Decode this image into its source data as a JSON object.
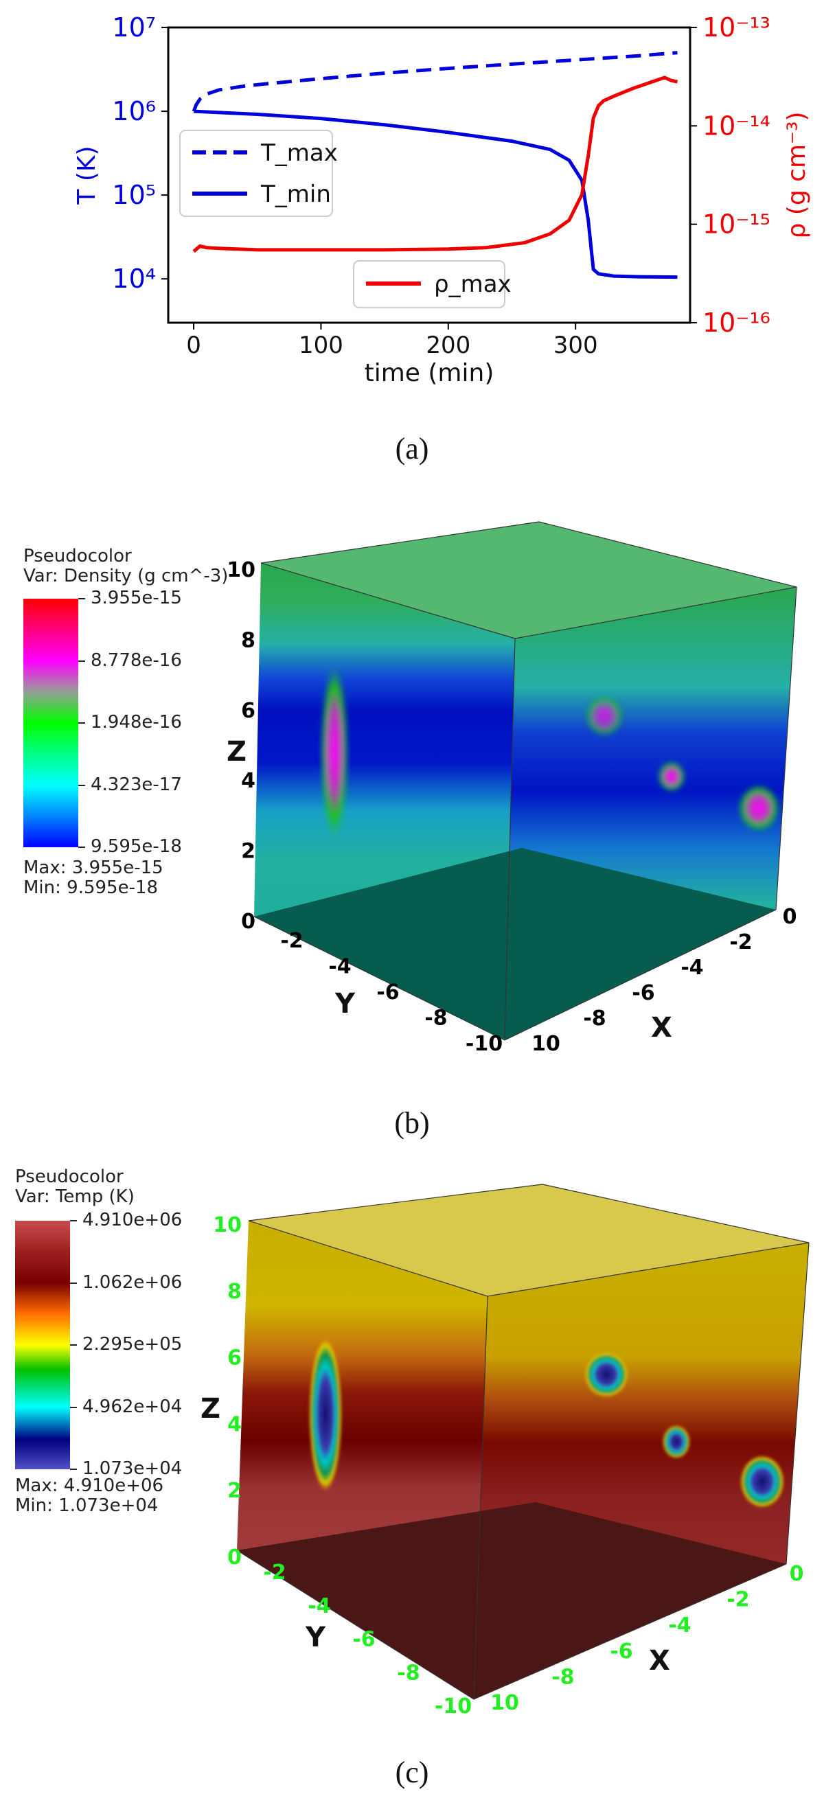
{
  "panel_a": {
    "caption": "(a)",
    "chart_data": {
      "type": "line",
      "xlabel": "time (min)",
      "ylabel_left": "T (K)",
      "ylabel_right": "ρ (g cm⁻³)",
      "x_ticks": [
        "0",
        "100",
        "200",
        "300"
      ],
      "y_left_ticks": [
        "10⁴",
        "10⁵",
        "10⁶",
        "10⁷"
      ],
      "y_right_ticks": [
        "10⁻¹⁶",
        "10⁻¹⁵",
        "10⁻¹⁴",
        "10⁻¹³"
      ],
      "xlim": [
        -20,
        390
      ],
      "ylim_left": [
        3000,
        10000000
      ],
      "ylim_right": [
        1e-16,
        1e-13
      ],
      "yscale": "log",
      "grid": false,
      "legend_T": [
        "T_max",
        "T_min"
      ],
      "legend_rho": [
        "ρ_max"
      ],
      "legend_placement": [
        "center-left",
        "bottom-center"
      ],
      "colors": {
        "T": "#0000dd",
        "rho": "#ee0000"
      },
      "series": [
        {
          "name": "T_max",
          "axis": "left",
          "style": "dashed",
          "color": "#0000dd",
          "x": [
            0,
            2,
            5,
            10,
            20,
            40,
            60,
            100,
            150,
            200,
            250,
            300,
            350,
            380
          ],
          "y": [
            1000000,
            1200000,
            1400000,
            1600000,
            1800000,
            2000000,
            2150000,
            2450000,
            2850000,
            3250000,
            3650000,
            4100000,
            4600000,
            5000000
          ]
        },
        {
          "name": "T_min",
          "axis": "left",
          "style": "solid",
          "color": "#0000dd",
          "x": [
            0,
            50,
            100,
            150,
            200,
            250,
            280,
            295,
            305,
            310,
            314,
            318,
            330,
            350,
            380
          ],
          "y": [
            1000000,
            920000,
            820000,
            690000,
            560000,
            440000,
            350000,
            260000,
            150000,
            50000,
            13000,
            11500,
            10800,
            10600,
            10500
          ]
        },
        {
          "name": "ρ_max",
          "axis": "right",
          "style": "solid",
          "color": "#ee0000",
          "x": [
            0,
            5,
            10,
            20,
            50,
            100,
            150,
            200,
            230,
            260,
            280,
            295,
            305,
            310,
            314,
            318,
            322,
            330,
            345,
            360,
            370,
            375,
            380
          ],
          "y": [
            5.3e-16,
            6e-16,
            5.8e-16,
            5.7e-16,
            5.5e-16,
            5.5e-16,
            5.5e-16,
            5.6e-16,
            5.8e-16,
            6.5e-16,
            8e-16,
            1.1e-15,
            2e-15,
            5e-15,
            1.2e-14,
            1.6e-14,
            1.8e-14,
            2e-14,
            2.4e-14,
            2.8e-14,
            3.1e-14,
            2.9e-14,
            2.8e-14
          ]
        }
      ]
    }
  },
  "panel_b": {
    "caption": "(b)",
    "legend": {
      "title": "Pseudocolor",
      "var": "Var: Density (g cm^-3)",
      "ticks": [
        "3.955e-15",
        "8.778e-16",
        "1.948e-16",
        "4.323e-17",
        "9.595e-18"
      ],
      "max": "Max:  3.955e-15",
      "min": "Min:  9.595e-18",
      "colors": [
        "#ff0000",
        "#ff00ff",
        "#888888",
        "#00ff00",
        "#00ffff",
        "#0000ff"
      ]
    },
    "axes": {
      "z_label": "Z",
      "y_label": "Y",
      "x_label": "X",
      "z_ticks": [
        "0",
        "2",
        "4",
        "6",
        "8",
        "10"
      ],
      "y_ticks": [
        "-2",
        "-4",
        "-6",
        "-8",
        "-10"
      ],
      "x_ticks": [
        "10",
        "-8",
        "-6",
        "-4",
        "-2",
        "0"
      ],
      "tick_color": "#000000"
    }
  },
  "panel_c": {
    "caption": "(c)",
    "legend": {
      "title": "Pseudocolor",
      "var": "Var: Temp (K)",
      "ticks": [
        "4.910e+06",
        "1.062e+06",
        "2.295e+05",
        "4.962e+04",
        "1.073e+04"
      ],
      "max": "Max:  4.910e+06",
      "min": "Min:  1.073e+04",
      "colors": [
        "#c04848",
        "#800000",
        "#ff6000",
        "#ffff00",
        "#00a000",
        "#00ffff",
        "#000080",
        "#4848c0"
      ]
    },
    "axes": {
      "z_label": "Z",
      "y_label": "Y",
      "x_label": "X",
      "z_ticks": [
        "0",
        "2",
        "4",
        "6",
        "8",
        "10"
      ],
      "y_ticks": [
        "-2",
        "-4",
        "-6",
        "-8",
        "-10"
      ],
      "x_ticks": [
        "10",
        "-8",
        "-6",
        "-4",
        "-2",
        "0"
      ],
      "tick_color": "#22ee22"
    }
  }
}
